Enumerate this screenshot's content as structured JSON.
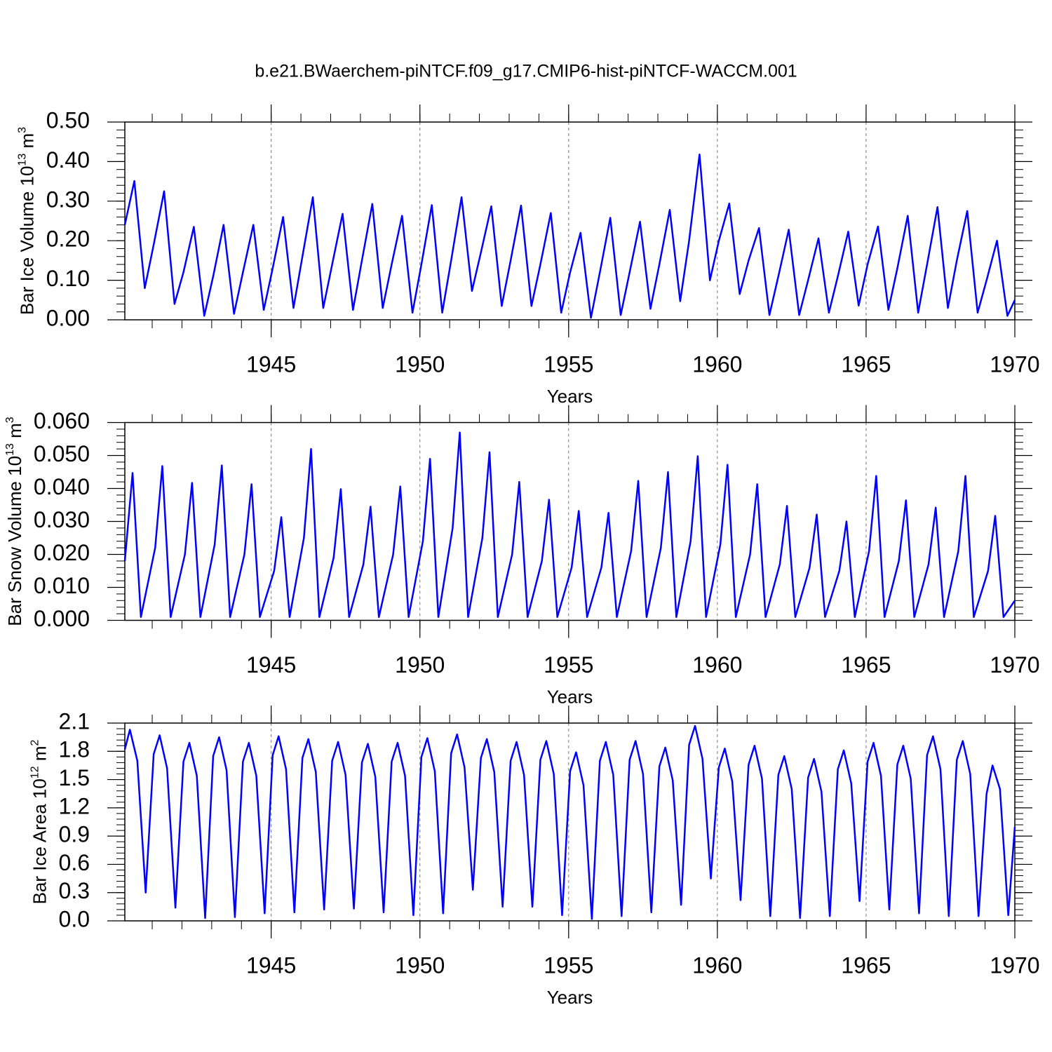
{
  "chart_data": [
    {
      "type": "line",
      "title": "b.e21.BWaerchem-piNTCF.f09_g17.CMIP6-hist-piNTCF-WACCM.001",
      "y_label": [
        "Bar Ice Volume 10",
        "13",
        " m",
        "3"
      ],
      "x_label": "Years",
      "color": "#0000ff",
      "xlim": [
        1940.08,
        1970
      ],
      "xticks": [
        1945,
        1950,
        1955,
        1960,
        1965,
        1970
      ],
      "grid": true,
      "ylim": [
        0,
        0.5
      ],
      "yticks": [
        {
          "value": 0,
          "label": "0.00"
        },
        {
          "value": 0.1,
          "label": "0.10"
        },
        {
          "value": 0.2,
          "label": "0.20"
        },
        {
          "value": 0.3,
          "label": "0.30"
        },
        {
          "value": 0.4,
          "label": "0.40"
        },
        {
          "value": 0.5,
          "label": "0.50"
        }
      ],
      "x": [
        1940.08,
        1940.4,
        1940.75,
        1941.05,
        1941.4,
        1941.75,
        1942.05,
        1942.4,
        1942.75,
        1943.05,
        1943.4,
        1943.75,
        1944.05,
        1944.4,
        1944.75,
        1945.05,
        1945.4,
        1945.75,
        1946.05,
        1946.4,
        1946.75,
        1947.05,
        1947.4,
        1947.75,
        1948.05,
        1948.4,
        1948.75,
        1949.05,
        1949.4,
        1949.75,
        1950.05,
        1950.4,
        1950.75,
        1951.05,
        1951.4,
        1951.75,
        1952.05,
        1952.4,
        1952.75,
        1953.05,
        1953.4,
        1953.75,
        1954.05,
        1954.4,
        1954.75,
        1955.05,
        1955.4,
        1955.75,
        1956.05,
        1956.4,
        1956.75,
        1957.05,
        1957.4,
        1957.75,
        1958.05,
        1958.4,
        1958.75,
        1959.05,
        1959.4,
        1959.75,
        1960.05,
        1960.4,
        1960.75,
        1961.05,
        1961.4,
        1961.75,
        1962.05,
        1962.4,
        1962.75,
        1963.05,
        1963.4,
        1963.75,
        1964.05,
        1964.4,
        1964.75,
        1965.05,
        1965.4,
        1965.75,
        1966.05,
        1966.4,
        1966.75,
        1967.05,
        1967.4,
        1967.75,
        1968.05,
        1968.4,
        1968.75,
        1969.05,
        1969.4,
        1969.75,
        1970
      ],
      "values": [
        0.24,
        0.351,
        0.08,
        0.19,
        0.325,
        0.04,
        0.12,
        0.235,
        0.01,
        0.11,
        0.24,
        0.015,
        0.12,
        0.24,
        0.025,
        0.13,
        0.26,
        0.03,
        0.16,
        0.31,
        0.03,
        0.14,
        0.268,
        0.025,
        0.15,
        0.293,
        0.03,
        0.14,
        0.263,
        0.018,
        0.14,
        0.29,
        0.018,
        0.15,
        0.31,
        0.073,
        0.17,
        0.287,
        0.035,
        0.15,
        0.289,
        0.035,
        0.14,
        0.27,
        0.018,
        0.12,
        0.22,
        0.005,
        0.12,
        0.258,
        0.012,
        0.12,
        0.248,
        0.028,
        0.14,
        0.278,
        0.047,
        0.2,
        0.418,
        0.1,
        0.2,
        0.294,
        0.065,
        0.15,
        0.232,
        0.012,
        0.11,
        0.228,
        0.012,
        0.1,
        0.206,
        0.018,
        0.11,
        0.223,
        0.036,
        0.14,
        0.236,
        0.025,
        0.13,
        0.263,
        0.018,
        0.14,
        0.285,
        0.03,
        0.15,
        0.275,
        0.018,
        0.1,
        0.2,
        0.01,
        0.05
      ]
    },
    {
      "type": "line",
      "y_label": [
        "Bar Snow Volume 10",
        "13",
        " m",
        "3"
      ],
      "x_label": "Years",
      "color": "#0000ff",
      "xlim": [
        1940.08,
        1970
      ],
      "xticks": [
        1945,
        1950,
        1955,
        1960,
        1965,
        1970
      ],
      "grid": true,
      "ylim": [
        0,
        0.06
      ],
      "yticks": [
        {
          "value": 0,
          "label": "0.000"
        },
        {
          "value": 0.01,
          "label": "0.010"
        },
        {
          "value": 0.02,
          "label": "0.020"
        },
        {
          "value": 0.03,
          "label": "0.030"
        },
        {
          "value": 0.04,
          "label": "0.040"
        },
        {
          "value": 0.05,
          "label": "0.050"
        },
        {
          "value": 0.06,
          "label": "0.060"
        }
      ],
      "x": [
        1940.08,
        1940.34,
        1940.62,
        1941.1,
        1941.34,
        1941.62,
        1942.1,
        1942.34,
        1942.62,
        1943.1,
        1943.34,
        1943.62,
        1944.1,
        1944.34,
        1944.62,
        1945.1,
        1945.34,
        1945.62,
        1946.1,
        1946.34,
        1946.62,
        1947.1,
        1947.34,
        1947.62,
        1948.1,
        1948.34,
        1948.62,
        1949.1,
        1949.34,
        1949.62,
        1950.1,
        1950.34,
        1950.62,
        1951.1,
        1951.34,
        1951.62,
        1952.1,
        1952.34,
        1952.62,
        1953.1,
        1953.34,
        1953.62,
        1954.1,
        1954.34,
        1954.62,
        1955.1,
        1955.34,
        1955.62,
        1956.1,
        1956.34,
        1956.62,
        1957.1,
        1957.34,
        1957.62,
        1958.1,
        1958.34,
        1958.62,
        1959.1,
        1959.34,
        1959.62,
        1960.1,
        1960.34,
        1960.62,
        1961.1,
        1961.34,
        1961.62,
        1962.1,
        1962.34,
        1962.62,
        1963.1,
        1963.34,
        1963.62,
        1964.1,
        1964.34,
        1964.62,
        1965.1,
        1965.34,
        1965.62,
        1966.1,
        1966.34,
        1966.62,
        1967.1,
        1967.34,
        1967.62,
        1968.1,
        1968.34,
        1968.62,
        1969.1,
        1969.34,
        1969.62,
        1970
      ],
      "values": [
        0.018,
        0.0447,
        0.001,
        0.022,
        0.0468,
        0.001,
        0.02,
        0.0417,
        0.001,
        0.023,
        0.047,
        0.001,
        0.02,
        0.0413,
        0.001,
        0.015,
        0.0313,
        0.001,
        0.025,
        0.052,
        0.001,
        0.019,
        0.0398,
        0.001,
        0.017,
        0.0345,
        0.001,
        0.02,
        0.0406,
        0.001,
        0.024,
        0.049,
        0.001,
        0.028,
        0.057,
        0.001,
        0.025,
        0.051,
        0.001,
        0.02,
        0.042,
        0.001,
        0.018,
        0.0366,
        0.001,
        0.016,
        0.0332,
        0.001,
        0.016,
        0.0326,
        0.001,
        0.021,
        0.0423,
        0.001,
        0.022,
        0.045,
        0.001,
        0.024,
        0.0498,
        0.001,
        0.023,
        0.0472,
        0.001,
        0.02,
        0.0413,
        0.001,
        0.017,
        0.0347,
        0.001,
        0.016,
        0.0321,
        0.001,
        0.015,
        0.03,
        0.001,
        0.021,
        0.0438,
        0.001,
        0.018,
        0.0364,
        0.001,
        0.017,
        0.0342,
        0.001,
        0.021,
        0.0438,
        0.001,
        0.015,
        0.0317,
        0.001,
        0.006
      ]
    },
    {
      "type": "line",
      "y_label": [
        "Bar Ice Area 10",
        "12",
        " m",
        "2"
      ],
      "x_label": "Years",
      "color": "#0000ff",
      "xlim": [
        1940.08,
        1970
      ],
      "xticks": [
        1945,
        1950,
        1955,
        1960,
        1965,
        1970
      ],
      "grid": true,
      "ylim": [
        0,
        2.1
      ],
      "yticks": [
        {
          "value": 0,
          "label": "0.0"
        },
        0.3,
        0.6,
        0.9,
        1.2,
        1.5,
        1.8,
        2.1
      ],
      "x": [
        1940.08,
        1940.25,
        1940.5,
        1940.78,
        1941.05,
        1941.25,
        1941.5,
        1941.78,
        1942.05,
        1942.25,
        1942.5,
        1942.78,
        1943.05,
        1943.25,
        1943.5,
        1943.78,
        1944.05,
        1944.25,
        1944.5,
        1944.78,
        1945.05,
        1945.25,
        1945.5,
        1945.78,
        1946.05,
        1946.25,
        1946.5,
        1946.78,
        1947.05,
        1947.25,
        1947.5,
        1947.78,
        1948.05,
        1948.25,
        1948.5,
        1948.78,
        1949.05,
        1949.25,
        1949.5,
        1949.78,
        1950.05,
        1950.25,
        1950.5,
        1950.78,
        1951.05,
        1951.25,
        1951.5,
        1951.78,
        1952.05,
        1952.25,
        1952.5,
        1952.78,
        1953.05,
        1953.25,
        1953.5,
        1953.78,
        1954.05,
        1954.25,
        1954.5,
        1954.78,
        1955.05,
        1955.25,
        1955.5,
        1955.78,
        1956.05,
        1956.25,
        1956.5,
        1956.78,
        1957.05,
        1957.25,
        1957.5,
        1957.78,
        1958.05,
        1958.25,
        1958.5,
        1958.78,
        1959.05,
        1959.25,
        1959.5,
        1959.78,
        1960.05,
        1960.25,
        1960.5,
        1960.78,
        1961.05,
        1961.25,
        1961.5,
        1961.78,
        1962.05,
        1962.25,
        1962.5,
        1962.78,
        1963.05,
        1963.25,
        1963.5,
        1963.78,
        1964.05,
        1964.25,
        1964.5,
        1964.78,
        1965.05,
        1965.25,
        1965.5,
        1965.78,
        1966.05,
        1966.25,
        1966.5,
        1966.78,
        1967.05,
        1967.25,
        1967.5,
        1967.78,
        1968.05,
        1968.25,
        1968.5,
        1968.78,
        1969.05,
        1969.25,
        1969.5,
        1969.78,
        1970
      ],
      "values": [
        1.82,
        2.03,
        1.7,
        0.3,
        1.77,
        1.97,
        1.62,
        0.14,
        1.69,
        1.89,
        1.54,
        0.03,
        1.75,
        1.95,
        1.6,
        0.04,
        1.69,
        1.89,
        1.54,
        0.08,
        1.76,
        1.96,
        1.61,
        0.09,
        1.73,
        1.93,
        1.58,
        0.12,
        1.7,
        1.9,
        1.55,
        0.13,
        1.68,
        1.88,
        1.53,
        0.09,
        1.69,
        1.89,
        1.54,
        0.06,
        1.74,
        1.94,
        1.59,
        0.08,
        1.78,
        1.98,
        1.63,
        0.33,
        1.73,
        1.93,
        1.58,
        0.15,
        1.7,
        1.9,
        1.55,
        0.15,
        1.71,
        1.91,
        1.56,
        0.06,
        1.59,
        1.79,
        1.44,
        0.02,
        1.7,
        1.9,
        1.55,
        0.05,
        1.71,
        1.91,
        1.56,
        0.09,
        1.64,
        1.84,
        1.49,
        0.17,
        1.87,
        2.07,
        1.72,
        0.45,
        1.63,
        1.83,
        1.48,
        0.22,
        1.66,
        1.86,
        1.51,
        0.05,
        1.55,
        1.75,
        1.4,
        0.03,
        1.52,
        1.72,
        1.37,
        0.05,
        1.61,
        1.81,
        1.46,
        0.21,
        1.69,
        1.89,
        1.54,
        0.12,
        1.66,
        1.86,
        1.51,
        0.08,
        1.76,
        1.96,
        1.61,
        0.05,
        1.71,
        1.91,
        1.56,
        0.05,
        1.35,
        1.65,
        1.4,
        0.06,
        1.0
      ]
    }
  ]
}
